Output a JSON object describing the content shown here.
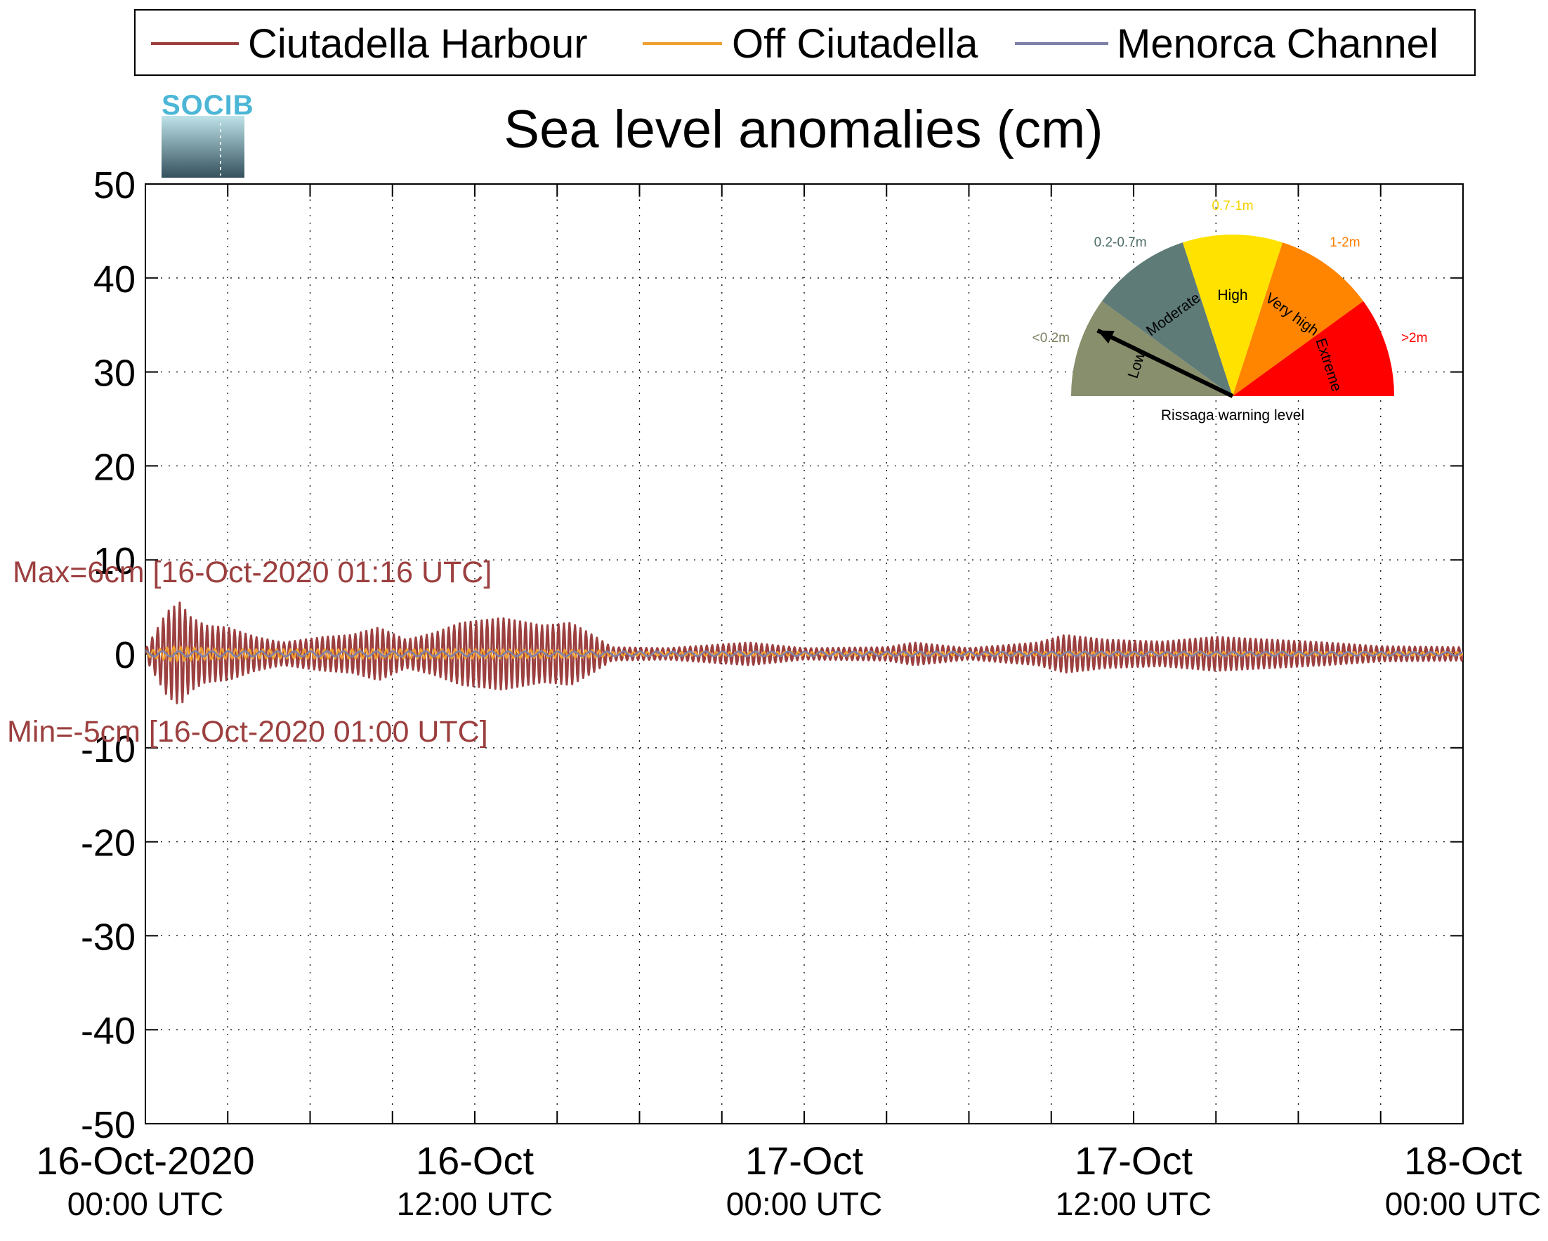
{
  "chart_data": {
    "type": "line",
    "title": "Sea level anomalies (cm)",
    "ylim": [
      -50,
      50
    ],
    "y_ticks": [
      50,
      40,
      30,
      20,
      10,
      0,
      -10,
      -20,
      -30,
      -40,
      -50
    ],
    "x_range_hours": [
      0,
      48
    ],
    "x_ticks": [
      {
        "hour": 0,
        "line1": "16-Oct-2020",
        "line2": "00:00 UTC"
      },
      {
        "hour": 12,
        "line1": "16-Oct",
        "line2": "12:00 UTC"
      },
      {
        "hour": 24,
        "line1": "17-Oct",
        "line2": "00:00 UTC"
      },
      {
        "hour": 36,
        "line1": "17-Oct",
        "line2": "12:00 UTC"
      },
      {
        "hour": 48,
        "line1": "18-Oct",
        "line2": "00:00 UTC"
      }
    ],
    "grid": true,
    "legend_position": "top",
    "series": [
      {
        "name": "Ciutadella Harbour",
        "color": "#9c3f3f",
        "kind": "oscillation",
        "period_hours": 0.2,
        "envelope": [
          {
            "hour": 0.0,
            "amp": 0.5
          },
          {
            "hour": 0.4,
            "amp": 2.5
          },
          {
            "hour": 0.8,
            "amp": 4.5
          },
          {
            "hour": 1.27,
            "amp": 5.5
          },
          {
            "hour": 1.6,
            "amp": 4.0
          },
          {
            "hour": 2.2,
            "amp": 3.0
          },
          {
            "hour": 3.0,
            "amp": 2.8
          },
          {
            "hour": 4.0,
            "amp": 1.8
          },
          {
            "hour": 5.0,
            "amp": 1.2
          },
          {
            "hour": 6.5,
            "amp": 1.8
          },
          {
            "hour": 7.5,
            "amp": 2.0
          },
          {
            "hour": 8.5,
            "amp": 2.8
          },
          {
            "hour": 9.5,
            "amp": 1.5
          },
          {
            "hour": 10.5,
            "amp": 2.2
          },
          {
            "hour": 11.5,
            "amp": 3.3
          },
          {
            "hour": 13.0,
            "amp": 3.8
          },
          {
            "hour": 14.5,
            "amp": 3.0
          },
          {
            "hour": 15.5,
            "amp": 3.3
          },
          {
            "hour": 16.3,
            "amp": 2.0
          },
          {
            "hour": 17.0,
            "amp": 0.7
          },
          {
            "hour": 19.0,
            "amp": 0.6
          },
          {
            "hour": 22.0,
            "amp": 1.2
          },
          {
            "hour": 24.0,
            "amp": 0.6
          },
          {
            "hour": 27.0,
            "amp": 0.7
          },
          {
            "hour": 28.0,
            "amp": 1.2
          },
          {
            "hour": 30.0,
            "amp": 0.6
          },
          {
            "hour": 32.5,
            "amp": 1.2
          },
          {
            "hour": 33.5,
            "amp": 2.0
          },
          {
            "hour": 35.0,
            "amp": 1.5
          },
          {
            "hour": 37.0,
            "amp": 1.3
          },
          {
            "hour": 39.0,
            "amp": 1.8
          },
          {
            "hour": 41.0,
            "amp": 1.5
          },
          {
            "hour": 43.0,
            "amp": 1.2
          },
          {
            "hour": 45.0,
            "amp": 0.8
          },
          {
            "hour": 48.0,
            "amp": 0.7
          }
        ]
      },
      {
        "name": "Off Ciutadella",
        "color": "#f0a030",
        "kind": "oscillation",
        "period_hours": 0.25,
        "envelope": [
          {
            "hour": 0.0,
            "amp": 0.3
          },
          {
            "hour": 1.0,
            "amp": 0.8
          },
          {
            "hour": 3.0,
            "amp": 0.5
          },
          {
            "hour": 12.0,
            "amp": 0.5
          },
          {
            "hour": 16.5,
            "amp": 0.4
          },
          {
            "hour": 17.0,
            "amp": 0.2
          },
          {
            "hour": 48.0,
            "amp": 0.2
          }
        ]
      },
      {
        "name": "Menorca Channel",
        "color": "#7f80a8",
        "kind": "oscillation",
        "period_hours": 0.6,
        "envelope": [
          {
            "hour": 0.0,
            "amp": 0.3
          },
          {
            "hour": 48.0,
            "amp": 0.2
          }
        ]
      }
    ],
    "annotations": {
      "max": {
        "text": "Max=6cm [16-Oct-2020 01:16 UTC]",
        "value": 6,
        "hour": 1.27
      },
      "min": {
        "text": "Min=-5cm [16-Oct-2020 01:00 UTC]",
        "value": -5,
        "hour": 1.0
      }
    }
  },
  "gauge": {
    "caption": "Rissaga warning level",
    "needle_level": "Low",
    "sectors": [
      {
        "label": "Low",
        "range": "<0.2m",
        "color": "#888f6c",
        "range_color": "#7b8060"
      },
      {
        "label": "Moderate",
        "range": "0.2-0.7m",
        "color": "#5e7b78",
        "range_color": "#4d6e6a"
      },
      {
        "label": "High",
        "range": "0.7-1m",
        "color": "#ffe200",
        "range_color": "#f4d400"
      },
      {
        "label": "Very high",
        "range": "1-2m",
        "color": "#ff8400",
        "range_color": "#ff7e00"
      },
      {
        "label": "Extreme",
        "range": ">2m",
        "color": "#ff0000",
        "range_color": "#ff0000"
      }
    ]
  },
  "logo": {
    "text": "SOCIB",
    "color": "#4bb6d6"
  }
}
